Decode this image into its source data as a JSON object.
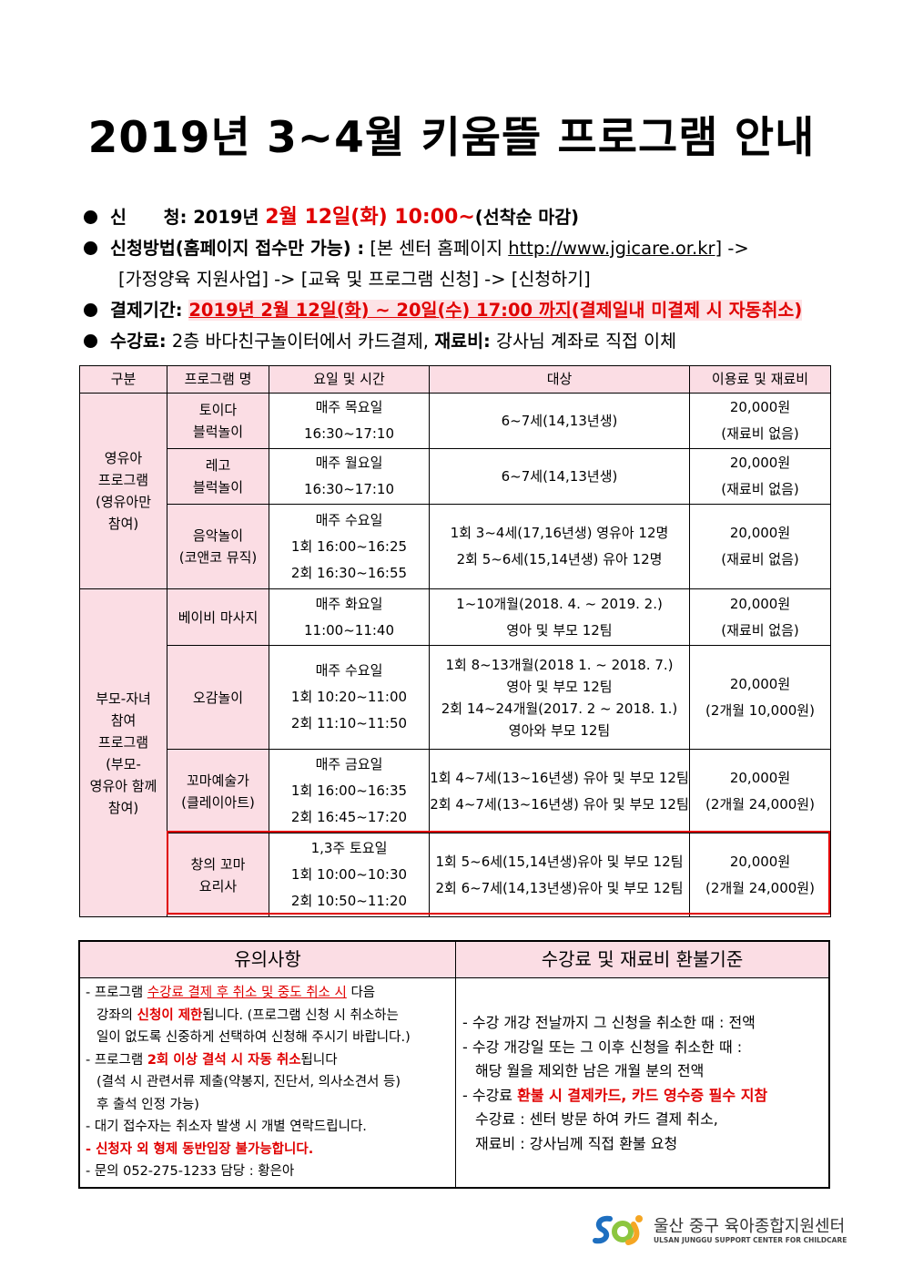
{
  "title": "2019년 3~4월 키움뜰 프로그램 안내",
  "info": {
    "apply_label": "신      청:",
    "apply_plain": "2019년",
    "apply_red": "2월  12일(화)  10:00~",
    "apply_tail": "(선착순 마감)",
    "method_label": "신청방법(홈페이지 접수만 가능) :",
    "method_text": "[본 센터 홈페이지",
    "method_url": "http://www.jgicare.or.kr",
    "method_tail": "] ->",
    "method_line2": "[가정양육 지원사업] -> [교육 및 프로그램 신청] -> [신청하기]",
    "pay_label": "결제기간:",
    "pay_text": "2019년 2월 12일(화) ~ 20일(수) 17:00 까지",
    "pay_note": "(결제일내 미결제 시 자동취소)",
    "fee_label": "수강료:",
    "fee_text": "2층 바다친구놀이터에서 카드결제,",
    "mat_label": "재료비:",
    "mat_text": "강사님 계좌로 직접 이체"
  },
  "table": {
    "headers": [
      "구분",
      "프로그램 명",
      "요일 및 시간",
      "대상",
      "이용료 및 재료비"
    ],
    "groups": [
      {
        "category": "영유아\n프로그램\n(영유아만\n참여)",
        "rows": [
          {
            "name": "토이다\n블럭놀이",
            "time": "매주 목요일\n16:30~17:10",
            "target": "6~7세(14,13년생)",
            "fee": "20,000원\n(재료비 없음)"
          },
          {
            "name": "레고\n블럭놀이",
            "time": "매주 월요일\n16:30~17:10",
            "target": "6~7세(14,13년생)",
            "fee": "20,000원\n(재료비 없음)"
          },
          {
            "name": "음악놀이\n(코앤코 뮤직)",
            "time": "매주 수요일\n1회 16:00~16:25\n2회 16:30~16:55",
            "target": "1회 3~4세(17,16년생) 영유아 12명\n2회 5~6세(15,14년생) 유아 12명",
            "fee": "20,000원\n(재료비 없음)"
          }
        ]
      },
      {
        "category": "부모-자녀\n참여\n프로그램\n(부모-\n영유아 함께\n참여)",
        "rows": [
          {
            "name": "베이비 마사지",
            "time": "매주 화요일\n11:00~11:40",
            "target": "1~10개월(2018. 4. ~ 2019. 2.)\n영아 및 부모 12팀",
            "fee": "20,000원\n(재료비 없음)"
          },
          {
            "name": "오감놀이",
            "time": "매주 수요일\n1회 10:20~11:00\n2회 11:10~11:50",
            "target": "1회 8~13개월(2018 1. ~ 2018. 7.)\n영아 및 부모 12팀\n2회 14~24개월(2017. 2 ~ 2018. 1.)\n영아와 부모 12팀",
            "fee": "20,000원\n(2개월 10,000원)"
          },
          {
            "name": "꼬마예술가\n(클레이아트)",
            "time": "매주 금요일\n1회 16:00~16:35\n2회 16:45~17:20",
            "target": "1회 4~7세(13~16년생) 유아 및 부모 12팀\n2회 4~7세(13~16년생) 유아 및 부모 12팀",
            "fee": "20,000원\n(2개월 24,000원)"
          },
          {
            "name": "창의 꼬마\n요리사",
            "time": "1,3주 토요일\n1회 10:00~10:30\n2회 10:50~11:20",
            "target": "1회 5~6세(15,14년생)유아 및 부모 12팀\n2회 6~7세(14,13년생)유아 및 부모 12팀",
            "fee": "20,000원\n(2개월 24,000원)"
          }
        ]
      }
    ]
  },
  "notes": {
    "left_title": "유의사항",
    "right_title": "수강료 및 재료비 환불기준",
    "l1a": "- 프로그램 ",
    "l1b": "수강료 결제 후 취소 및 중도 취소 시",
    "l1c": " 다음",
    "l2a": "강좌의 ",
    "l2b": "신청이 제한",
    "l2c": "됩니다. (프로그램 신청 시 취소하는",
    "l3": "일이 없도록 신중하게 선택하여 신청해 주시기 바랍니다.)",
    "l4a": "- 프로그램 ",
    "l4b": "2회 이상 결석 시 자동 취소",
    "l4c": "됩니다",
    "l5": "(결석 시 관련서류 제출(약봉지, 진단서, 의사소견서 등)",
    "l6": "후 출석 인정 가능)",
    "l7": "- 대기 접수자는 취소자 발생 시 개별 연락드립니다.",
    "l8": "- 신청자 외 형제 동반입장 불가능합니다.",
    "l9": "- 문의 052-275-1233 담당 : 황은아",
    "r1": "- 수강 개강 전날까지 그 신청을 취소한 때 : 전액",
    "r2": "- 수강 개강일 또는 그 이후 신청을 취소한 때 :",
    "r3": "해당 월을 제외한 남은 개월 분의 전액",
    "r4a": "- 수강료 ",
    "r4b": "환불 시 결제카드, 카드 영수증 필수 지참",
    "r5": "수강료 : 센터 방문 하여 카드 결제 취소,",
    "r6": "재료비 : 강사님께 직접 환불 요청"
  },
  "logo": {
    "name": "울산 중구 육아종합지원센터",
    "sub": "ULSAN JUNGGU SUPPORT CENTER FOR CHILDCARE"
  },
  "colors": {
    "accent_red": "#e00000",
    "header_pink": "#fbdde4"
  }
}
